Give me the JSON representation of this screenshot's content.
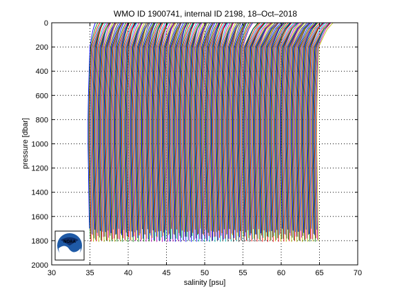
{
  "chart_data": {
    "type": "line",
    "title": "WMO ID 1900741, internal ID 2198, 18–Oct–2018",
    "xlabel": "salinity [psu]",
    "ylabel": "pressure [dbar]",
    "xlim": [
      30,
      70
    ],
    "ylim": [
      0,
      2000
    ],
    "y_reversed": true,
    "xticks": [
      30,
      35,
      40,
      45,
      50,
      55,
      60,
      65,
      70
    ],
    "yticks": [
      0,
      200,
      400,
      600,
      800,
      1000,
      1200,
      1400,
      1600,
      1800,
      2000
    ],
    "grid": true,
    "grid_style": "dotted",
    "series_count": 300,
    "profile_offset_psu": 0.1,
    "first_profile": {
      "pressure": [
        0,
        50,
        100,
        200,
        300,
        400,
        500,
        600,
        800,
        1000,
        1200,
        1400,
        1600,
        1800
      ],
      "salinity": [
        35.3,
        35.2,
        35.1,
        35.0,
        34.95,
        34.9,
        34.85,
        34.8,
        34.75,
        34.75,
        34.8,
        34.85,
        34.9,
        34.95
      ]
    },
    "colors": [
      "#0000ff",
      "#008000",
      "#ff0000",
      "#00bfbf",
      "#bf00bf",
      "#bfbf00",
      "#404040"
    ],
    "logo_text": "NOAA"
  }
}
